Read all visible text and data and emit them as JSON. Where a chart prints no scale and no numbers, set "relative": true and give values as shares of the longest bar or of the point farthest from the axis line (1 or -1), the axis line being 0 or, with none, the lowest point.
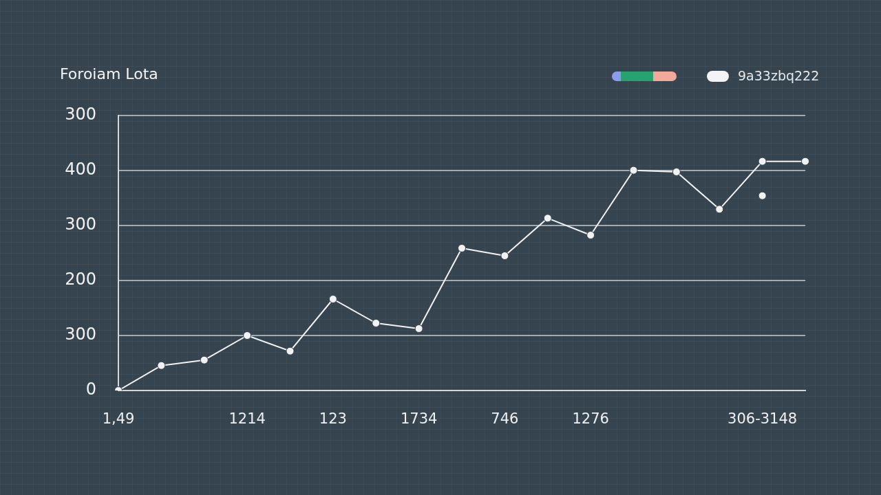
{
  "chart_data": {
    "type": "line",
    "title": "Foroiam Lota",
    "relative": true,
    "annotations": [
      "9a33zbq222",
      "300",
      "400",
      "300",
      "200",
      "300",
      "0"
    ],
    "categories": [
      "1,49",
      null,
      null,
      "1214",
      null,
      "123",
      null,
      "1734",
      null,
      "746",
      null,
      "1276",
      null,
      null,
      null,
      "306-3148",
      null
    ],
    "grid": "y",
    "marker": "circle",
    "series": [
      {
        "color": "#f2f2f2",
        "values": [
          0,
          0.109,
          0.133,
          0.24,
          0.172,
          0.399,
          0.294,
          0.27,
          0.621,
          0.588,
          0.752,
          0.678,
          0.961,
          0.954,
          0.791,
          1,
          1
        ]
      },
      {
        "type": "scatter",
        "color": "#f2f2f2",
        "x": [
          "306-3148"
        ],
        "values": [
          0.85
        ]
      }
    ]
  }
}
